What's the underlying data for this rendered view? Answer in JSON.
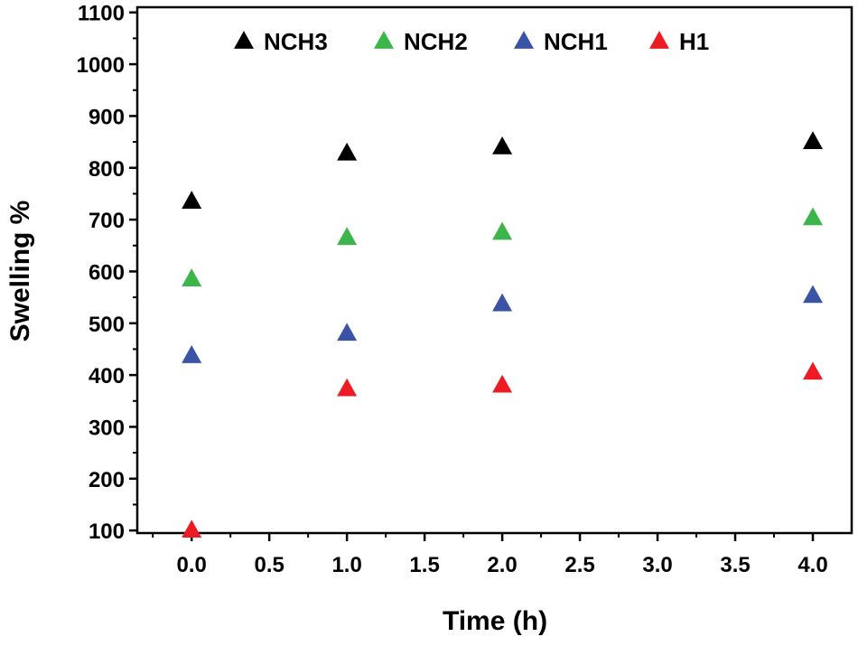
{
  "chart_data": {
    "type": "scatter",
    "title": "",
    "xlabel": "Time (h)",
    "ylabel": "Swelling %",
    "xlim": [
      -0.35,
      4.25
    ],
    "ylim": [
      95,
      1110
    ],
    "xticks": [
      "0.0",
      "0.5",
      "1.0",
      "1.5",
      "2.0",
      "2.5",
      "3.0",
      "3.5",
      "4.0"
    ],
    "yticks": [
      "100",
      "200",
      "300",
      "400",
      "500",
      "600",
      "700",
      "800",
      "900",
      "1000",
      "1100"
    ],
    "grid": false,
    "legend_position": "top",
    "marker": "triangle",
    "series": [
      {
        "name": "NCH3",
        "color": "#000000",
        "x": [
          0,
          1,
          2,
          4
        ],
        "y": [
          735,
          828,
          840,
          850
        ]
      },
      {
        "name": "NCH2",
        "color": "#3cb54a",
        "x": [
          0,
          1,
          2,
          4
        ],
        "y": [
          585,
          665,
          675,
          703
        ]
      },
      {
        "name": "NCH1",
        "color": "#3a53a4",
        "x": [
          0,
          1,
          2,
          4
        ],
        "y": [
          437,
          480,
          537,
          553
        ]
      },
      {
        "name": "H1",
        "color": "#ed1c24",
        "x": [
          0,
          1,
          2,
          4
        ],
        "y": [
          100,
          373,
          380,
          405
        ]
      }
    ]
  }
}
